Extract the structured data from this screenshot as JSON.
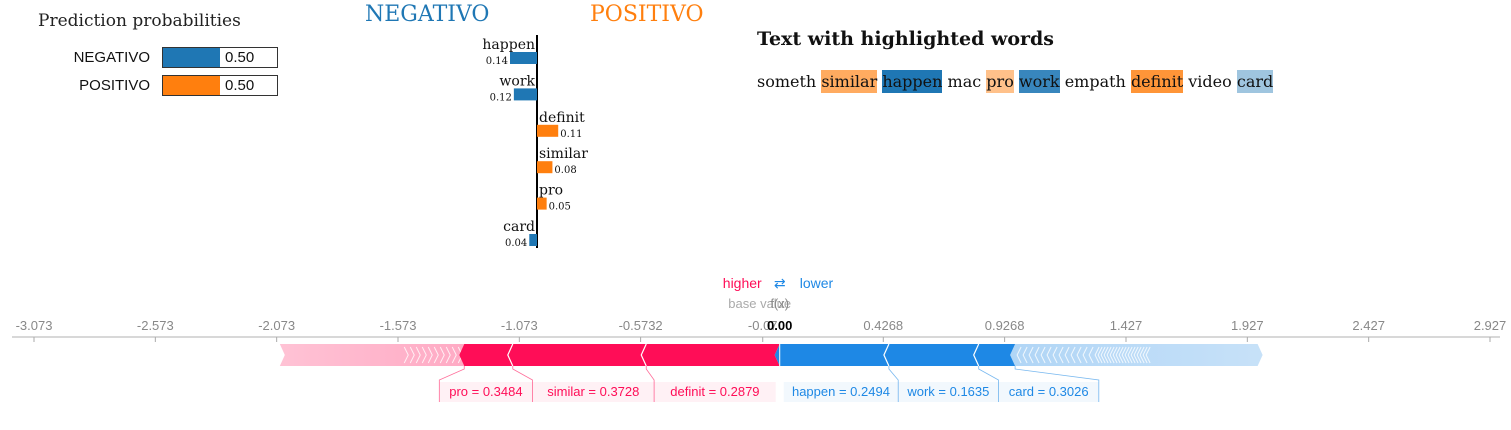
{
  "proba": {
    "title": "Prediction probabilities",
    "rows": [
      {
        "label": "NEGATIVO",
        "value": 0.5,
        "display": "0.50",
        "color": "#1f77b4"
      },
      {
        "label": "POSITIVO",
        "value": 0.5,
        "display": "0.50",
        "color": "#ff7f0e"
      }
    ]
  },
  "classes": {
    "negative": {
      "label": "NEGATIVO",
      "color": "#1f77b4"
    },
    "positive": {
      "label": "POSITIVO",
      "color": "#ff7f0e"
    }
  },
  "text_panel": {
    "title": "Text with highlighted words",
    "tokens": [
      {
        "text": "someth",
        "weight": 0
      },
      {
        "text": "similar",
        "weight": 0.08
      },
      {
        "text": "happen",
        "weight": -0.14
      },
      {
        "text": "mac",
        "weight": 0
      },
      {
        "text": "pro",
        "weight": 0.05
      },
      {
        "text": "work",
        "weight": -0.12
      },
      {
        "text": "empath",
        "weight": 0
      },
      {
        "text": "definit",
        "weight": 0.11
      },
      {
        "text": "video",
        "weight": 0
      },
      {
        "text": "card",
        "weight": -0.04
      }
    ]
  },
  "chart_data": [
    {
      "type": "bar",
      "orientation": "horizontal-diverging",
      "categories": [
        "happen",
        "work",
        "definit",
        "similar",
        "pro",
        "card"
      ],
      "values": [
        -0.14,
        -0.12,
        0.11,
        0.08,
        0.05,
        -0.04
      ],
      "value_labels": [
        "0.14",
        "0.12",
        "0.11",
        "0.08",
        "0.05",
        "0.04"
      ],
      "colors": {
        "negative": "#1f77b4",
        "positive": "#ff7f0e"
      },
      "xlim": [
        -0.14,
        0.14
      ]
    },
    {
      "type": "force",
      "legend": {
        "higher": "higher",
        "arrows": "⇄",
        "lower": "lower",
        "higher_color": "#ff0d57",
        "lower_color": "#1e88e5"
      },
      "base_value_label": "base value",
      "fx_label": "f(x)",
      "fx_value": 0.0,
      "fx_display": "0.00",
      "xlim": [
        -3.073,
        2.927
      ],
      "ticks": [
        {
          "value": -3.073,
          "label": "-3.073"
        },
        {
          "value": -2.573,
          "label": "-2.573"
        },
        {
          "value": -2.073,
          "label": "-2.073"
        },
        {
          "value": -1.573,
          "label": "-1.573"
        },
        {
          "value": -1.073,
          "label": "-1.073"
        },
        {
          "value": -0.5732,
          "label": "-0.5732"
        },
        {
          "value": -0.07,
          "label": "-0.07"
        },
        {
          "value": 0.4268,
          "label": "0.4268"
        },
        {
          "value": 0.9268,
          "label": "0.9268"
        },
        {
          "value": 1.427,
          "label": "1.427"
        },
        {
          "value": 1.927,
          "label": "1.927"
        },
        {
          "value": 2.427,
          "label": "2.427"
        },
        {
          "value": 2.927,
          "label": "2.927"
        }
      ],
      "positive_extent": -2.06,
      "negative_extent": 1.99,
      "positive_features": [
        {
          "label": "definit = 0.2879",
          "start": 0.0,
          "end": -0.55
        },
        {
          "label": "similar = 0.3728",
          "start": -0.55,
          "end": -1.1
        },
        {
          "label": "pro = 0.3484",
          "start": -1.1,
          "end": -1.3
        }
      ],
      "negative_features": [
        {
          "label": "happen = 0.2494",
          "start": 0.0,
          "end": 0.45
        },
        {
          "label": "work = 0.1635",
          "start": 0.45,
          "end": 0.82
        },
        {
          "label": "card = 0.3026",
          "start": 0.82,
          "end": 0.97
        }
      ]
    }
  ]
}
